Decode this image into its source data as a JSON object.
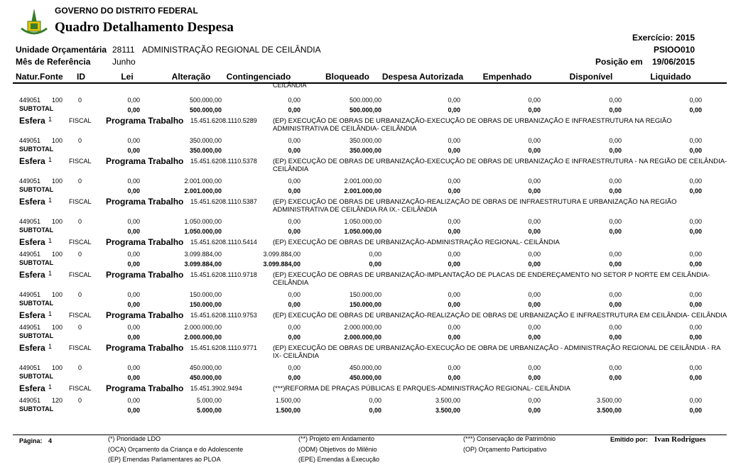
{
  "header": {
    "government": "GOVERNO DO DISTRITO FEDERAL",
    "title": "Quadro Detalhamento Despesa",
    "exercicio_label": "Exercício:",
    "exercicio": "2015",
    "report_code": "PSIOO010",
    "unidade_label": "Unidade Orçamentária",
    "unidade_code": "28111",
    "unidade_name": "ADMINISTRAÇÃO REGIONAL DE CEILÂNDIA",
    "mes_label": "Mês de Referência",
    "mes": "Junho",
    "posicao_label": "Posição em",
    "posicao": "19/06/2015"
  },
  "columns": [
    "Natur.",
    "Fonte",
    "ID",
    "Lei",
    "Alteração",
    "Contingenciado",
    "Bloqueado",
    "Despesa Autorizada",
    "Empenhado",
    "Disponível",
    "Liquidado"
  ],
  "continuation": "CEILÂNDIA",
  "blocks": [
    {
      "row": {
        "natureza": "449051",
        "fonte": "100",
        "id": "0",
        "values": [
          "0,00",
          "500.000,00",
          "0,00",
          "500.000,00",
          "0,00",
          "0,00",
          "0,00",
          "0,00"
        ]
      },
      "subtotal": {
        "label": "SUBTOTAL",
        "values": [
          "0,00",
          "500.000,00",
          "0,00",
          "500.000,00",
          "0,00",
          "0,00",
          "0,00",
          "0,00"
        ]
      },
      "programa": {
        "esfera_label": "Esfera",
        "esfera": "1",
        "tipo": "FISCAL",
        "label": "Programa Trabalho",
        "code": "15.451.6208.1110.5289",
        "description": "(EP) EXECUÇÃO DE OBRAS DE URBANIZAÇÃO-EXECUÇÃO DE OBRAS DE URBANIZAÇÃO E INFRAESTRUTURA NA REGIÃO ADMINISTRATIVA DE CEILÂNDIA- CEILÂNDIA"
      }
    },
    {
      "row": {
        "natureza": "449051",
        "fonte": "100",
        "id": "0",
        "values": [
          "0,00",
          "350.000,00",
          "0,00",
          "350.000,00",
          "0,00",
          "0,00",
          "0,00",
          "0,00"
        ]
      },
      "subtotal": {
        "label": "SUBTOTAL",
        "values": [
          "0,00",
          "350.000,00",
          "0,00",
          "350.000,00",
          "0,00",
          "0,00",
          "0,00",
          "0,00"
        ]
      },
      "programa": {
        "esfera_label": "Esfera",
        "esfera": "1",
        "tipo": "FISCAL",
        "label": "Programa Trabalho",
        "code": "15.451.6208.1110.5378",
        "description": "(EP) EXECUÇÃO DE OBRAS DE URBANIZAÇÃO-EXECUÇÃO DE OBRAS DE URBANIZAÇÃO E INFRAESTRUTURA - NA REGIÃO DE CEILÂNDIA- CEILÂNDIA"
      }
    },
    {
      "row": {
        "natureza": "449051",
        "fonte": "100",
        "id": "0",
        "values": [
          "0,00",
          "2.001.000,00",
          "0,00",
          "2.001.000,00",
          "0,00",
          "0,00",
          "0,00",
          "0,00"
        ]
      },
      "subtotal": {
        "label": "SUBTOTAL",
        "values": [
          "0,00",
          "2.001.000,00",
          "0,00",
          "2.001.000,00",
          "0,00",
          "0,00",
          "0,00",
          "0,00"
        ]
      },
      "programa": {
        "esfera_label": "Esfera",
        "esfera": "1",
        "tipo": "FISCAL",
        "label": "Programa Trabalho",
        "code": "15.451.6208.1110.5387",
        "description": "(EP) EXECUÇÃO DE OBRAS DE URBANIZAÇÃO-REALIZAÇÃO DE OBRAS DE INFRAESTRUTURA E URBANIZAÇÃO NA REGIÃO ADMINISTRATIVA DE CEILÂNDIA RA IX.- CEILÂNDIA"
      }
    },
    {
      "row": {
        "natureza": "449051",
        "fonte": "100",
        "id": "0",
        "values": [
          "0,00",
          "1.050.000,00",
          "0,00",
          "1.050.000,00",
          "0,00",
          "0,00",
          "0,00",
          "0,00"
        ]
      },
      "subtotal": {
        "label": "SUBTOTAL",
        "values": [
          "0,00",
          "1.050.000,00",
          "0,00",
          "1.050.000,00",
          "0,00",
          "0,00",
          "0,00",
          "0,00"
        ]
      },
      "programa": {
        "esfera_label": "Esfera",
        "esfera": "1",
        "tipo": "FISCAL",
        "label": "Programa Trabalho",
        "code": "15.451.6208.1110.5414",
        "description": "(EP) EXECUÇÃO DE OBRAS DE URBANIZAÇÃO-ADMINISTRAÇÃO REGIONAL- CEILÂNDIA"
      }
    },
    {
      "row": {
        "natureza": "449051",
        "fonte": "100",
        "id": "0",
        "values": [
          "0,00",
          "3.099.884,00",
          "3.099.884,00",
          "0,00",
          "0,00",
          "0,00",
          "0,00",
          "0,00"
        ]
      },
      "subtotal": {
        "label": "SUBTOTAL",
        "values": [
          "0,00",
          "3.099.884,00",
          "3.099.884,00",
          "0,00",
          "0,00",
          "0,00",
          "0,00",
          "0,00"
        ]
      },
      "programa": {
        "esfera_label": "Esfera",
        "esfera": "1",
        "tipo": "FISCAL",
        "label": "Programa Trabalho",
        "code": "15.451.6208.1110.9718",
        "description": "(EP) EXECUÇÃO DE OBRAS DE URBANIZAÇÃO-IMPLANTAÇÃO DE PLACAS DE ENDEREÇAMENTO NO SETOR P NORTE EM CEILÂNDIA- CEILÂNDIA"
      }
    },
    {
      "row": {
        "natureza": "449051",
        "fonte": "100",
        "id": "0",
        "values": [
          "0,00",
          "150.000,00",
          "0,00",
          "150.000,00",
          "0,00",
          "0,00",
          "0,00",
          "0,00"
        ]
      },
      "subtotal": {
        "label": "SUBTOTAL",
        "values": [
          "0,00",
          "150.000,00",
          "0,00",
          "150.000,00",
          "0,00",
          "0,00",
          "0,00",
          "0,00"
        ]
      },
      "programa": {
        "esfera_label": "Esfera",
        "esfera": "1",
        "tipo": "FISCAL",
        "label": "Programa Trabalho",
        "code": "15.451.6208.1110.9753",
        "description": "(EP) EXECUÇÃO DE OBRAS DE URBANIZAÇÃO-REALIZAÇÃO DE OBRAS DE URBANIZAÇÃO E INFRAESTRUTURA EM CEILÂNDIA- CEILÂNDIA"
      }
    },
    {
      "row": {
        "natureza": "449051",
        "fonte": "100",
        "id": "0",
        "values": [
          "0,00",
          "2.000.000,00",
          "0,00",
          "2.000.000,00",
          "0,00",
          "0,00",
          "0,00",
          "0,00"
        ]
      },
      "subtotal": {
        "label": "SUBTOTAL",
        "values": [
          "0,00",
          "2.000.000,00",
          "0,00",
          "2.000.000,00",
          "0,00",
          "0,00",
          "0,00",
          "0,00"
        ]
      },
      "programa": {
        "esfera_label": "Esfera",
        "esfera": "1",
        "tipo": "FISCAL",
        "label": "Programa Trabalho",
        "code": "15.451.6208.1110.9771",
        "description": "(EP) EXECUÇÃO DE OBRAS DE URBANIZAÇÃO-EXECUÇÃO DE OBRA DE URBANIZAÇÃO - ADMINISTRAÇÃO REGIONAL DE CEILÂNDIA - RA IX- CEILÂNDIA"
      }
    },
    {
      "row": {
        "natureza": "449051",
        "fonte": "100",
        "id": "0",
        "values": [
          "0,00",
          "450.000,00",
          "0,00",
          "450.000,00",
          "0,00",
          "0,00",
          "0,00",
          "0,00"
        ]
      },
      "subtotal": {
        "label": "SUBTOTAL",
        "values": [
          "0,00",
          "450.000,00",
          "0,00",
          "450.000,00",
          "0,00",
          "0,00",
          "0,00",
          "0,00"
        ]
      },
      "programa": {
        "esfera_label": "Esfera",
        "esfera": "1",
        "tipo": "FISCAL",
        "label": "Programa Trabalho",
        "code": "15.451.3902.9494",
        "description": "(***)REFORMA DE PRAÇAS PÚBLICAS E PARQUES-ADMINISTRAÇÃO REGIONAL- CEILÂNDIA"
      }
    },
    {
      "row": {
        "natureza": "449051",
        "fonte": "120",
        "id": "0",
        "values": [
          "0,00",
          "5.000,00",
          "1.500,00",
          "0,00",
          "3.500,00",
          "0,00",
          "3.500,00",
          "0,00"
        ]
      },
      "subtotal": {
        "label": "SUBTOTAL",
        "values": [
          "0,00",
          "5.000,00",
          "1.500,00",
          "0,00",
          "3.500,00",
          "0,00",
          "3.500,00",
          "0,00"
        ]
      }
    }
  ],
  "footer": {
    "page_label": "Página:",
    "page": "4",
    "legend": [
      [
        "(*)  Prioridade LDO",
        "(**) Projeto em Andamento",
        "(***) Conservação de Patrimônio"
      ],
      [
        "(OCA)  Orçamento da Criança e do Adolescente",
        "(ODM) Objetivos do Milênio",
        "(OP) Orçamento Participativo"
      ],
      [
        "(EP)  Emendas Parlamentares ao PLOA",
        "(EPE) Emendas à Execução"
      ]
    ],
    "emitido_label": "Emitido por:",
    "emitido": "Ivan Rodrigues"
  }
}
